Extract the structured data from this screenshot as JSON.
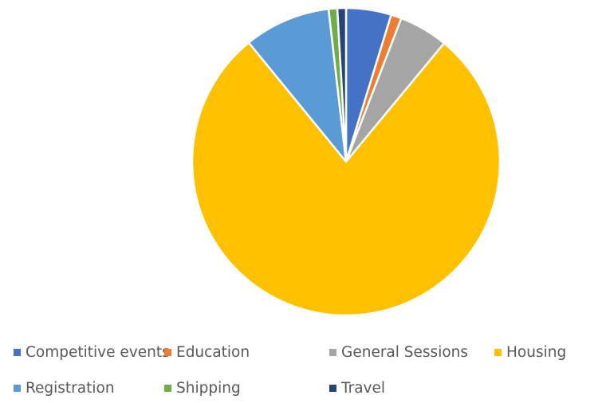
{
  "chart_data": {
    "type": "pie",
    "title": "",
    "legend_position": "bottom",
    "start_angle_deg": 0,
    "direction": "clockwise",
    "slices": [
      {
        "label": "Competitive events",
        "value": 4.7,
        "color": "#4472C4"
      },
      {
        "label": "Education",
        "value": 1.1,
        "color": "#ED7D31"
      },
      {
        "label": "General Sessions",
        "value": 5.1,
        "color": "#A5A5A5"
      },
      {
        "label": "Housing",
        "value": 77.4,
        "color": "#FFC000"
      },
      {
        "label": "Registration",
        "value": 9.0,
        "color": "#5B9BD5"
      },
      {
        "label": "Shipping",
        "value": 0.9,
        "color": "#70AD47"
      },
      {
        "label": "Travel",
        "value": 0.9,
        "color": "#264478"
      }
    ]
  }
}
